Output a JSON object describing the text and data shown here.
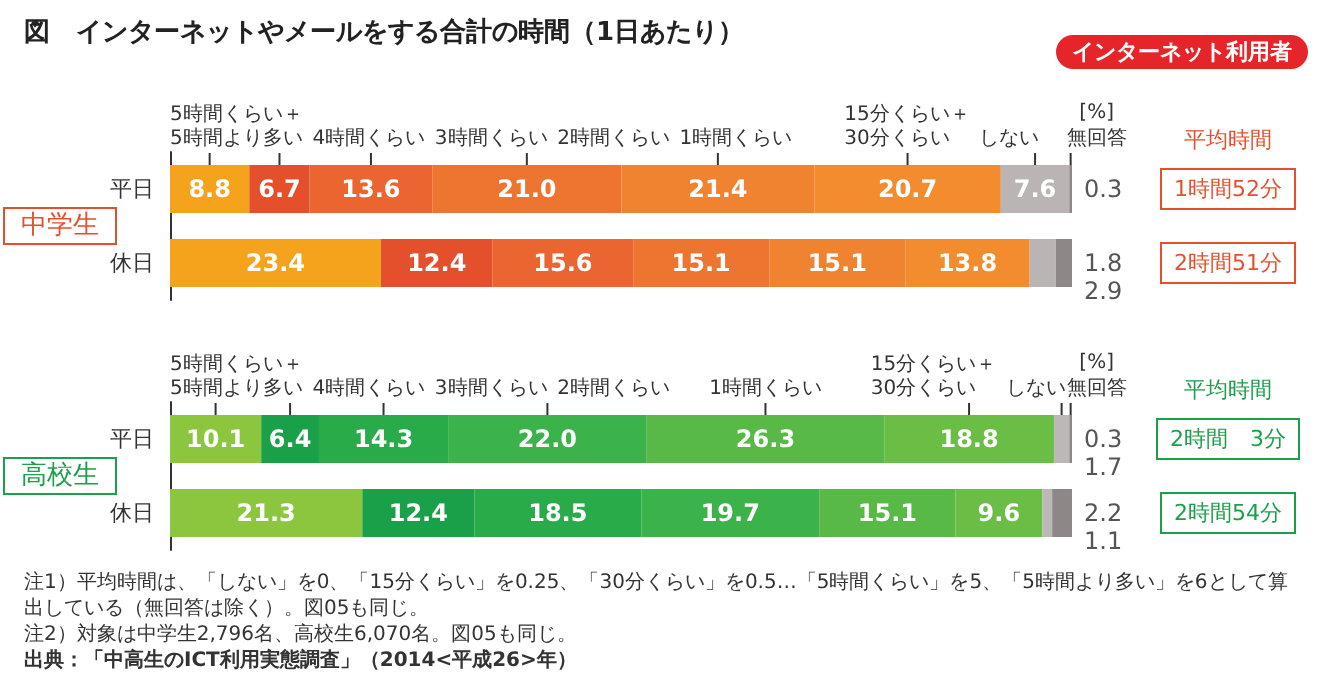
{
  "chart_data": [
    {
      "type": "bar",
      "orientation": "horizontal",
      "stacked": true,
      "title": "図　インターネットやメールをする合計の時間（1日あたり）",
      "subtitle": "インターネット利用者",
      "ylabel": "中学生",
      "xlabel": "[%]",
      "tick_labels": "y",
      "categories": [
        "平日",
        "休日"
      ],
      "series": [
        {
          "name": "5時間くらい＋\n5時間より多い",
          "color": "#f5a31c",
          "values": [
            8.8,
            23.4
          ],
          "value_labels": [
            "8.8",
            "23.4"
          ]
        },
        {
          "name": "4時間くらい",
          "color": "#e4502b",
          "values": [
            6.7,
            12.4
          ],
          "value_labels": [
            "6.7",
            "12.4"
          ]
        },
        {
          "name": "3時間くらい",
          "color": "#eb6530",
          "values": [
            13.6,
            15.6
          ],
          "value_labels": [
            "13.6",
            "15.6"
          ]
        },
        {
          "name": "2時間くらい",
          "color": "#ee7530",
          "values": [
            21.0,
            15.1
          ],
          "value_labels": [
            "21.0",
            "15.1"
          ]
        },
        {
          "name": "1時間くらい",
          "color": "#f08330",
          "values": [
            21.4,
            15.1
          ],
          "value_labels": [
            "21.4",
            "15.1"
          ]
        },
        {
          "name": "15分くらい＋\n30分くらい",
          "color": "#f28c2e",
          "values": [
            20.7,
            13.8
          ],
          "value_labels": [
            "20.7",
            "13.8"
          ]
        },
        {
          "name": "しない",
          "color": "#bab4b4",
          "values": [
            7.6,
            2.9
          ],
          "value_labels": [
            "7.6",
            "2.9"
          ]
        },
        {
          "name": "無回答",
          "color": "#8e8787",
          "values": [
            0.3,
            1.8
          ],
          "value_labels": [
            "0.3",
            "1.8"
          ]
        }
      ],
      "annotations": [
        "平均時間",
        "1時間52分",
        "2時間51分"
      ]
    },
    {
      "type": "bar",
      "orientation": "horizontal",
      "stacked": true,
      "ylabel": "高校生",
      "xlabel": "[%]",
      "tick_labels": "y",
      "categories": [
        "平日",
        "休日"
      ],
      "series": [
        {
          "name": "5時間くらい＋\n5時間より多い",
          "color": "#8cc63f",
          "values": [
            10.1,
            21.3
          ],
          "value_labels": [
            "10.1",
            "21.3"
          ]
        },
        {
          "name": "4時間くらい",
          "color": "#1aa049",
          "values": [
            6.4,
            12.4
          ],
          "value_labels": [
            "6.4",
            "12.4"
          ]
        },
        {
          "name": "3時間くらい",
          "color": "#2aab4a",
          "values": [
            14.3,
            18.5
          ],
          "value_labels": [
            "14.3",
            "18.5"
          ]
        },
        {
          "name": "2時間くらい",
          "color": "#3bb34a",
          "values": [
            22.0,
            19.7
          ],
          "value_labels": [
            "22.0",
            "19.7"
          ]
        },
        {
          "name": "1時間くらい",
          "color": "#58b947",
          "values": [
            26.3,
            15.1
          ],
          "value_labels": [
            "26.3",
            "15.1"
          ]
        },
        {
          "name": "15分くらい＋\n30分くらい",
          "color": "#6abd45",
          "values": [
            18.8,
            9.6
          ],
          "value_labels": [
            "18.8",
            "9.6"
          ]
        },
        {
          "name": "しない",
          "color": "#bdb8b8",
          "values": [
            1.7,
            1.1
          ],
          "value_labels": [
            "1.7",
            "1.1"
          ]
        },
        {
          "name": "無回答",
          "color": "#8e8787",
          "values": [
            0.3,
            2.2
          ],
          "value_labels": [
            "0.3",
            "2.2"
          ]
        }
      ],
      "annotations": [
        "平均時間",
        "2時間　3分",
        "2時間54分",
        "注1）平均時間は、「しない」を0、「15分くらい」を0.25、「30分くらい」を0.5…「5時間くらい」を5、「5時間より多い」を6として算出している（無回答は除く）。図05も同じ。",
        "注2）対象は中学生2,796名、高校生6,070名。図05も同じ。",
        "出典：「中高生のICT利用実態調査」（2014<平成26>年）"
      ]
    }
  ]
}
